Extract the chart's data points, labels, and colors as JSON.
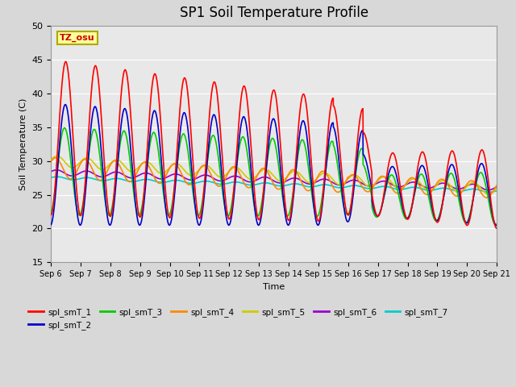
{
  "title": "SP1 Soil Temperature Profile",
  "xlabel": "Time",
  "ylabel": "Soil Temperature (C)",
  "ylim": [
    15,
    50
  ],
  "xlim": [
    0,
    15
  ],
  "xtick_labels": [
    "Sep 6",
    "Sep 7",
    "Sep 8",
    "Sep 9",
    "Sep 10",
    "Sep 11",
    "Sep 12",
    "Sep 13",
    "Sep 14",
    "Sep 15",
    "Sep 16",
    "Sep 17",
    "Sep 18",
    "Sep 19",
    "Sep 20",
    "Sep 21"
  ],
  "series_colors": {
    "spl_smT_1": "#ff0000",
    "spl_smT_2": "#0000cc",
    "spl_smT_3": "#00cc00",
    "spl_smT_4": "#ff8800",
    "spl_smT_5": "#cccc00",
    "spl_smT_6": "#9900cc",
    "spl_smT_7": "#00cccc"
  },
  "annotation_text": "TZ_osu",
  "annotation_color": "#cc0000",
  "annotation_bg": "#ffff99",
  "annotation_border": "#aaaa00",
  "plot_bg": "#e8e8e8",
  "grid_color": "#ffffff",
  "title_fontsize": 12,
  "fig_width": 6.4,
  "fig_height": 4.8,
  "dpi": 100
}
